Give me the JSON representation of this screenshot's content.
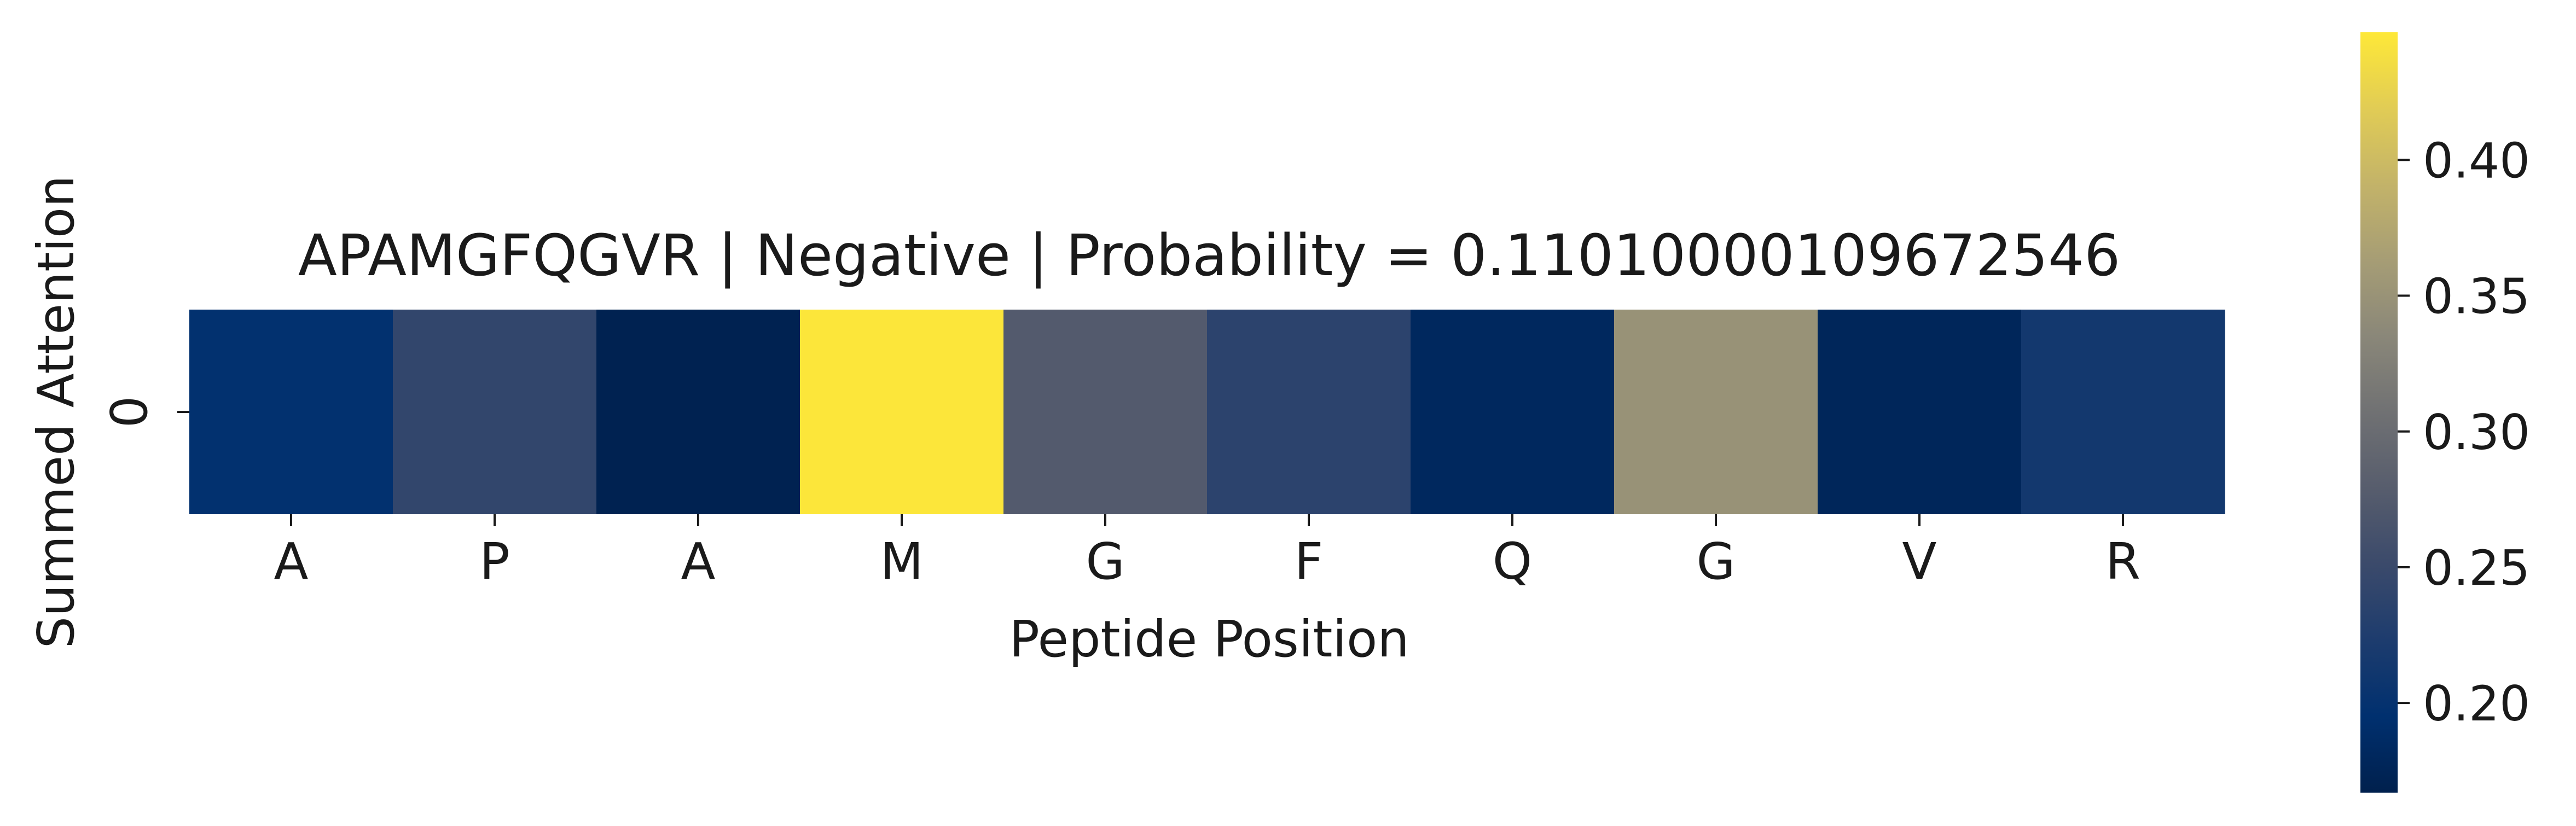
{
  "chart_data": {
    "type": "heatmap",
    "title": "APAMGFQGVR | Negative | Probability = 0.11010000109672546",
    "xlabel": "Peptide Position",
    "ylabel": "Summed Attention",
    "x_categories": [
      "A",
      "P",
      "A",
      "M",
      "G",
      "F",
      "Q",
      "G",
      "V",
      "R"
    ],
    "y_categories": [
      "0"
    ],
    "values": [
      [
        0.197,
        0.243,
        0.17,
        0.445,
        0.275,
        0.237,
        0.181,
        0.349,
        0.178,
        0.213
      ]
    ],
    "colormap": "cividis",
    "colorbar": {
      "min": 0.167,
      "max": 0.447,
      "ticks": [
        0.2,
        0.25,
        0.3,
        0.35,
        0.4
      ],
      "tick_labels": [
        "0.20",
        "0.25",
        "0.30",
        "0.35",
        "0.40"
      ]
    },
    "colors": {
      "cmap_stops": [
        "#00204d",
        "#00306f",
        "#1d3c6e",
        "#3b4a6b",
        "#575d6d",
        "#707173",
        "#8a8779",
        "#a69d75",
        "#c3b369",
        "#e1cc55",
        "#fee838"
      ]
    }
  }
}
